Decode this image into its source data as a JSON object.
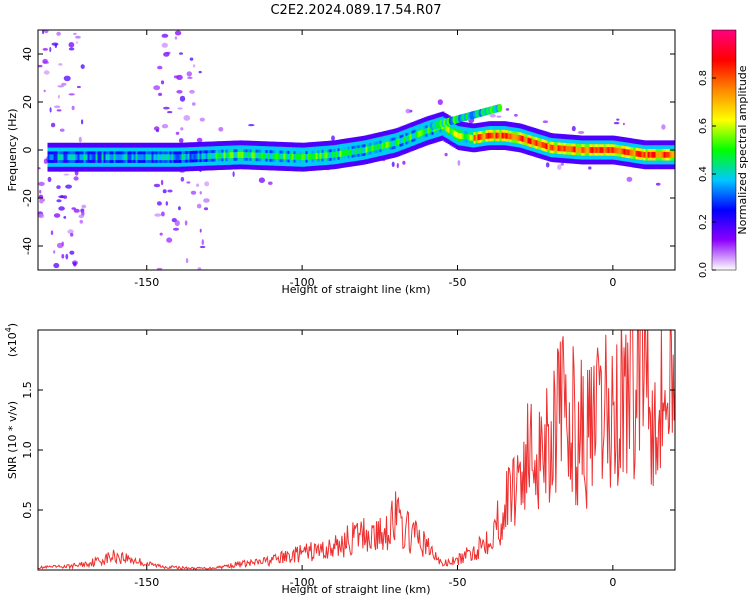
{
  "title": "C2E2.2024.089.17.54.R07",
  "chart_data": [
    {
      "type": "heatmap",
      "xlabel": "Height of straight line (km)",
      "ylabel": "Frequency (Hz)",
      "xlim": [
        -185,
        20
      ],
      "ylim": [
        -50,
        50
      ],
      "x_ticks": [
        -150,
        -100,
        -50,
        0
      ],
      "x_tick_labels": [
        "-150",
        "-100",
        "-50",
        "0"
      ],
      "y_ticks": [
        40,
        20,
        0,
        -20,
        -40
      ],
      "y_tick_labels": [
        "40",
        "20",
        "0",
        "-20",
        "-40"
      ],
      "ridge": {
        "x": [
          -180,
          -160,
          -140,
          -120,
          -100,
          -90,
          -80,
          -70,
          -60,
          -55,
          -50,
          -45,
          -40,
          -35,
          -30,
          -25,
          -20,
          -10,
          0,
          10,
          20
        ],
        "frequency": [
          -3,
          -3,
          -3,
          -2,
          -3,
          -2,
          0,
          3,
          8,
          10,
          6,
          5,
          6,
          6,
          5,
          3,
          1,
          0,
          0,
          -2,
          -2
        ]
      },
      "colorbar": {
        "label": "Normalized spectral amplitude",
        "range": [
          0.0,
          1.0
        ],
        "ticks": [
          0.0,
          0.2,
          0.4,
          0.6,
          0.8
        ],
        "tick_labels": [
          "0.0",
          "0.2",
          "0.4",
          "0.6",
          "0.8"
        ],
        "colors": [
          "#ffffff",
          "#8b00ff",
          "#0000ff",
          "#00c8ff",
          "#00ff00",
          "#ffff00",
          "#ff8800",
          "#ff0000",
          "#ff007f"
        ]
      }
    },
    {
      "type": "line",
      "xlabel": "Height of straight line (km)",
      "ylabel": "SNR (10 * v/v)",
      "ylabel_multiplier": "(x10",
      "ylabel_multiplier_exp": "4",
      "xlim": [
        -185,
        20
      ],
      "ylim": [
        0,
        20000
      ],
      "x_ticks": [
        -150,
        -100,
        -50,
        0
      ],
      "x_tick_labels": [
        "-150",
        "-100",
        "-50",
        "0"
      ],
      "y_ticks": [
        5000,
        10000,
        15000
      ],
      "y_tick_labels": [
        "0.5",
        "1.0",
        "1.5"
      ],
      "series": [
        {
          "color": "#ee3030",
          "x": [
            -185,
            -175,
            -170,
            -165,
            -160,
            -155,
            -150,
            -145,
            -140,
            -135,
            -130,
            -125,
            -120,
            -115,
            -110,
            -105,
            -100,
            -95,
            -90,
            -85,
            -80,
            -75,
            -72,
            -70,
            -68,
            -65,
            -62,
            -60,
            -55,
            -50,
            -45,
            -42,
            -40,
            -38,
            -35,
            -32,
            -30,
            -28,
            -25,
            -22,
            -20,
            -18,
            -15,
            -12,
            -10,
            -8,
            -5,
            -2,
            0,
            2,
            5,
            8,
            10,
            12,
            15,
            18,
            20
          ],
          "y": [
            200,
            300,
            500,
            800,
            1200,
            900,
            500,
            300,
            200,
            150,
            150,
            300,
            500,
            600,
            800,
            1100,
            1400,
            1600,
            1800,
            2500,
            3000,
            2800,
            3800,
            4500,
            3500,
            3000,
            2500,
            2000,
            500,
            800,
            1500,
            2200,
            3000,
            3500,
            5000,
            7000,
            8500,
            9000,
            10000,
            11000,
            11500,
            13000,
            12500,
            12000,
            11500,
            11000,
            12000,
            13000,
            12500,
            14000,
            15500,
            17000,
            19000,
            16000,
            14000,
            15000,
            14500
          ]
        }
      ]
    }
  ]
}
